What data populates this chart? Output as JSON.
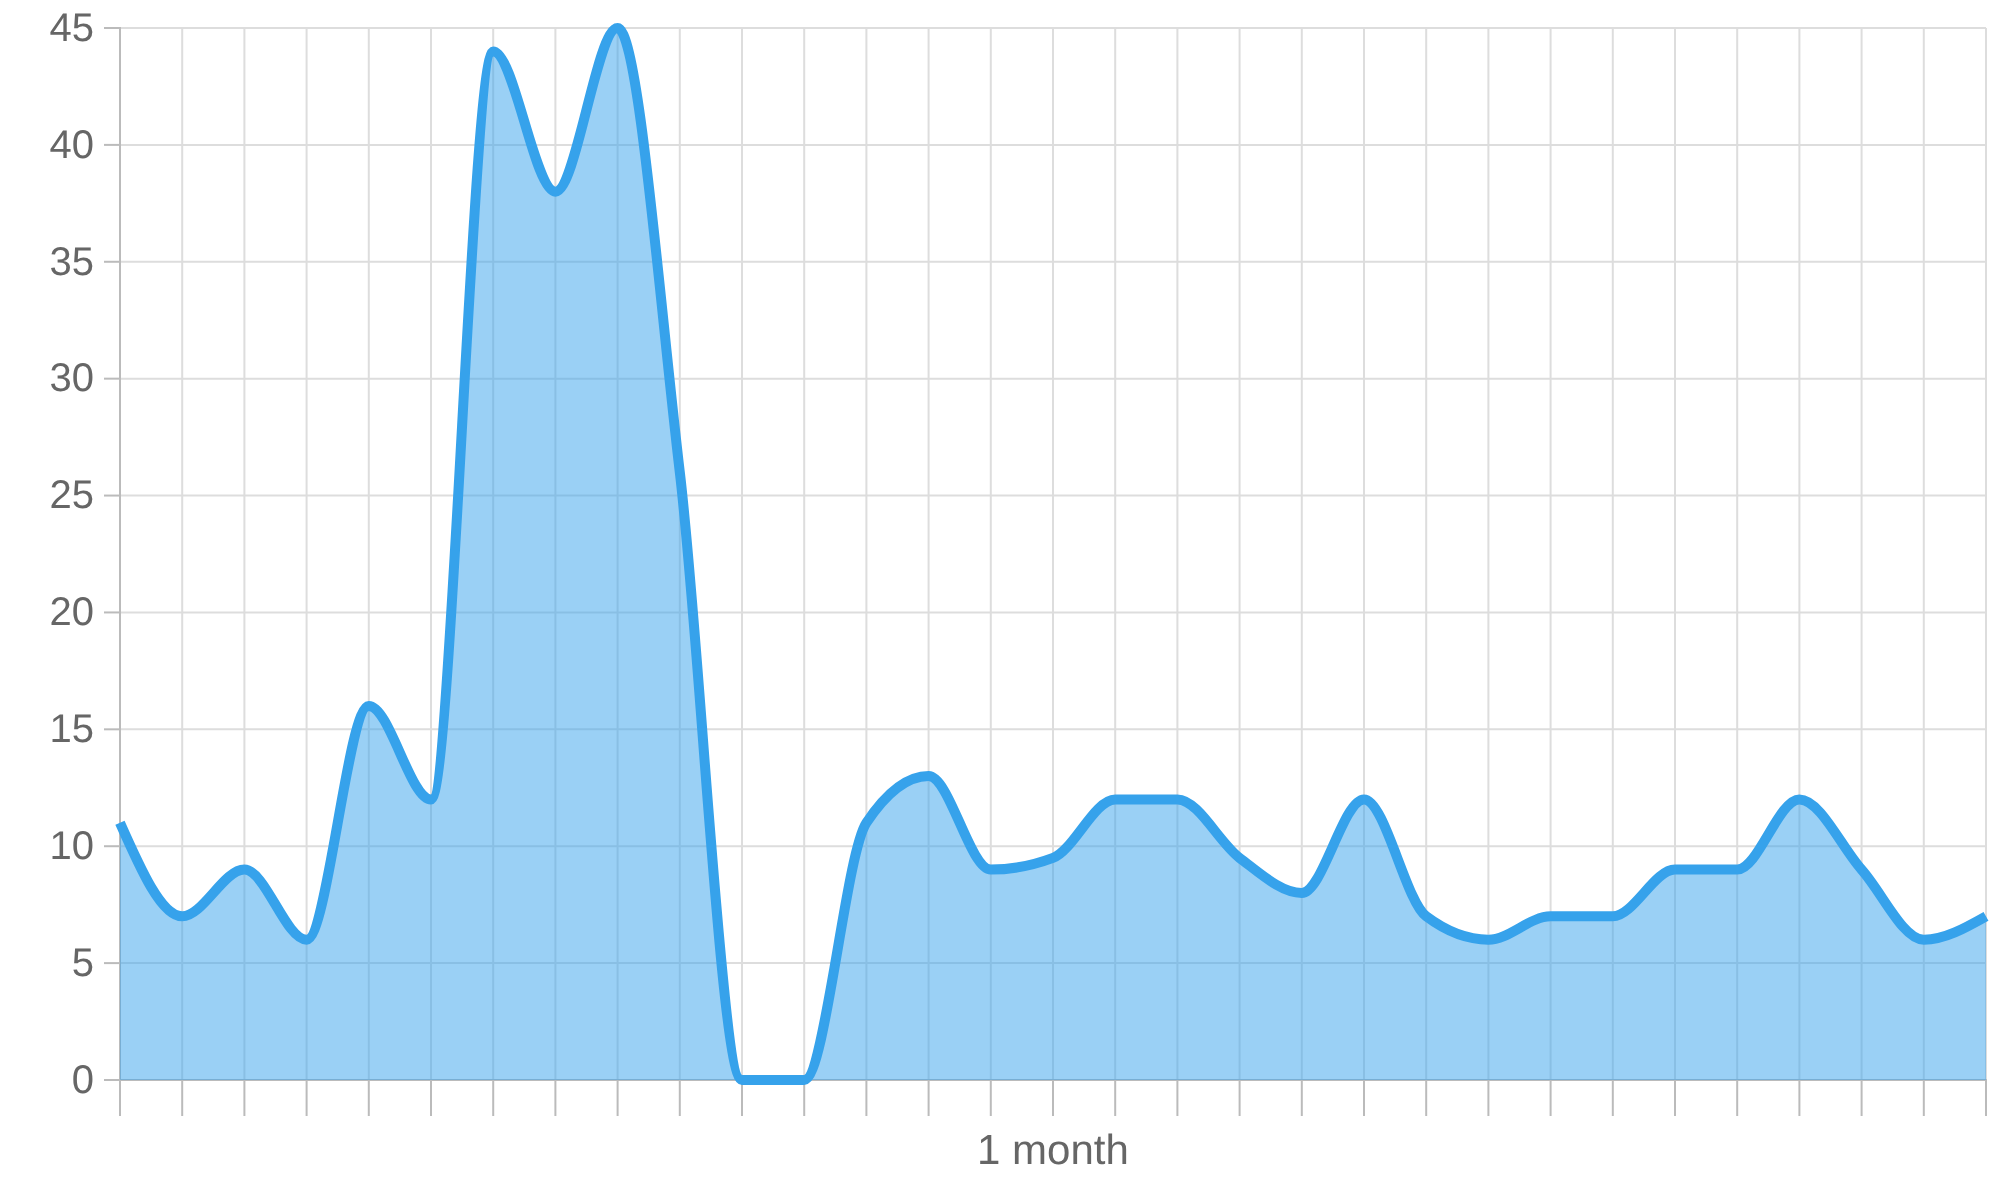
{
  "chart_data": {
    "type": "area",
    "xlabel": "1 month",
    "categories": [
      null,
      null,
      null,
      null,
      null,
      null,
      null,
      null,
      null,
      null,
      null,
      null,
      null,
      null,
      null,
      null,
      null,
      null,
      null,
      null,
      null,
      null,
      null,
      null,
      null,
      null,
      null,
      null,
      null,
      null,
      null
    ],
    "series": [
      {
        "color": "#36a2eb",
        "values": [
          11,
          7,
          9,
          6,
          16,
          12,
          44,
          38,
          45,
          26,
          0,
          0,
          11,
          13,
          9,
          9.5,
          12,
          12,
          9.5,
          8,
          12,
          7,
          6,
          7,
          7,
          9,
          9,
          12,
          9,
          6,
          7
        ]
      }
    ],
    "ylim": [
      0,
      45
    ],
    "yticks": [
      0,
      5,
      10,
      15,
      20,
      25,
      30,
      35,
      40,
      45
    ],
    "grid": true,
    "marker": "none",
    "line_style": "solid"
  }
}
